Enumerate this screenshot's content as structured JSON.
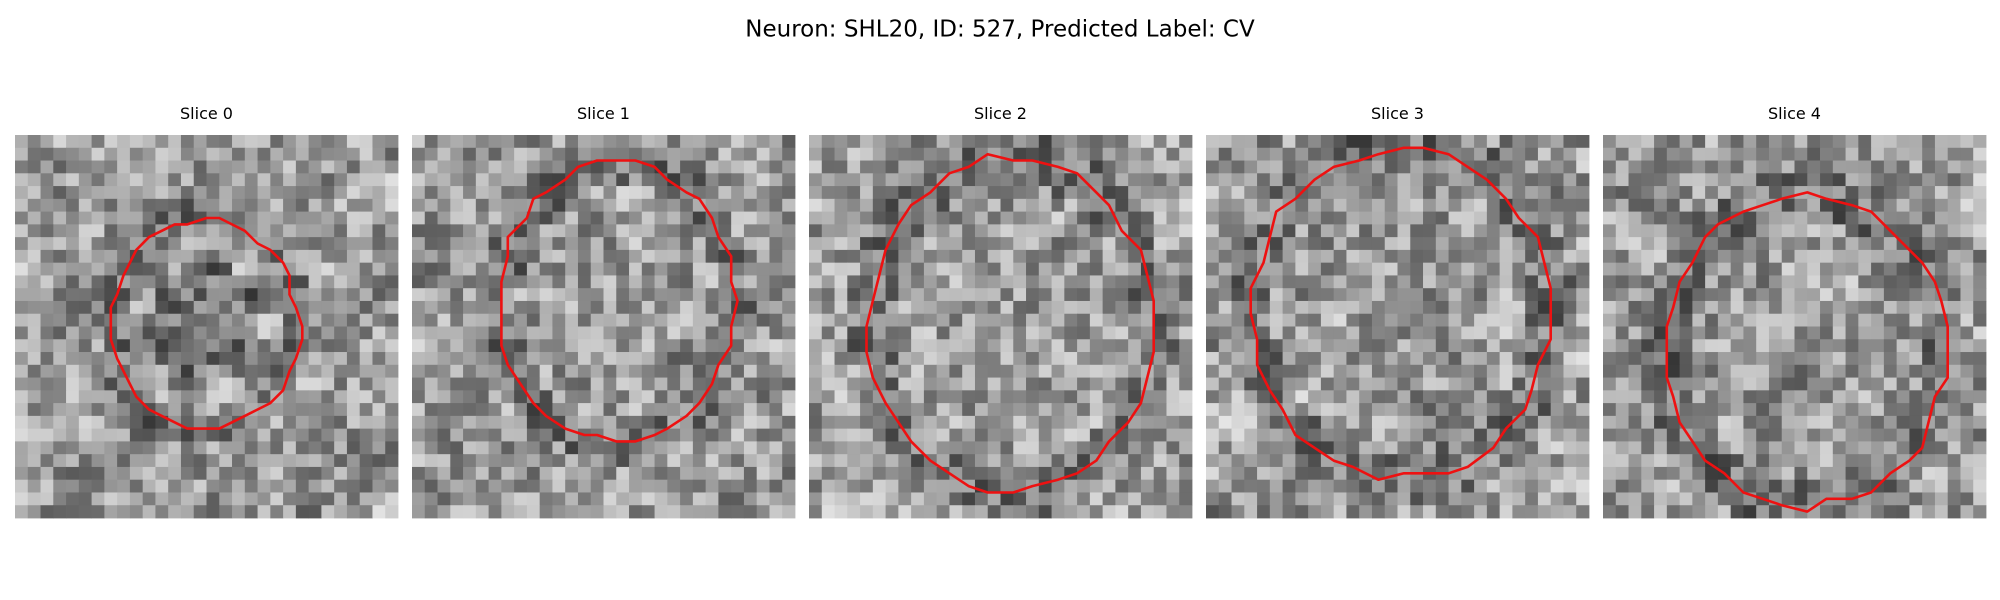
{
  "title": "Neuron: SHL20, ID: 527, Predicted Label: CV",
  "panels": [
    {
      "title": "Slice 0"
    },
    {
      "title": "Slice 1"
    },
    {
      "title": "Slice 2"
    },
    {
      "title": "Slice 3"
    },
    {
      "title": "Slice 4"
    }
  ]
}
